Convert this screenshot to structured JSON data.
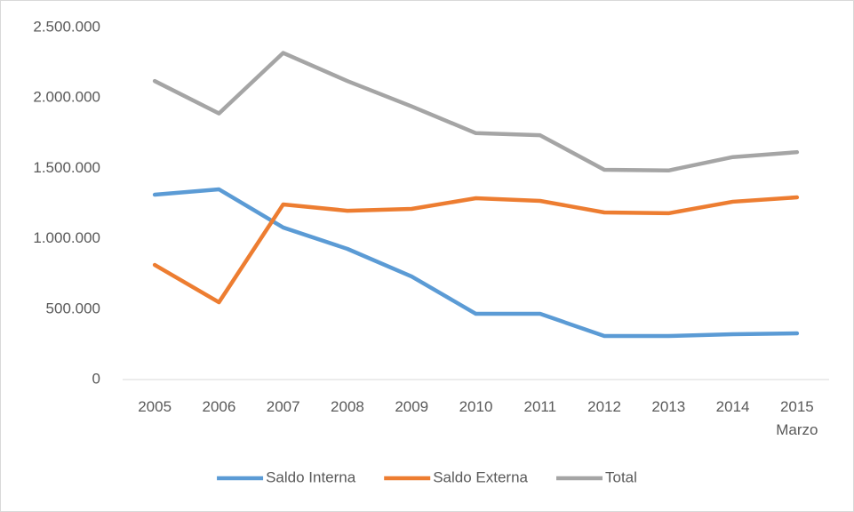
{
  "chart_data": {
    "type": "line",
    "categories": [
      "2005",
      "2006",
      "2007",
      "2008",
      "2009",
      "2010",
      "2011",
      "2012",
      "2013",
      "2014",
      "2015\nMarzo"
    ],
    "series": [
      {
        "name": "Saldo Interna",
        "color": "#5b9bd5",
        "values": [
          1313000,
          1351000,
          1080000,
          928000,
          732000,
          467000,
          467000,
          309000,
          309000,
          322000,
          328000
        ]
      },
      {
        "name": "Saldo Externa",
        "color": "#ed7d31",
        "values": [
          814000,
          549000,
          1244000,
          1199000,
          1212000,
          1288000,
          1269000,
          1187000,
          1181000,
          1263000,
          1294000
        ]
      },
      {
        "name": "Total",
        "color": "#a5a5a5",
        "values": [
          2120000,
          1890000,
          2320000,
          2120000,
          1940000,
          1750000,
          1735000,
          1490000,
          1485000,
          1580000,
          1615000
        ]
      }
    ],
    "ylim": [
      0,
      2500000
    ],
    "yticks": [
      0,
      {
        "value": 500000,
        "label": "500.000"
      },
      {
        "value": 1000000,
        "label": "1.000.000"
      },
      {
        "value": 1500000,
        "label": "1.500.000"
      },
      {
        "value": 2000000,
        "label": "2.000.000"
      },
      {
        "value": 2500000,
        "label": "2.500.000"
      }
    ],
    "grid": false,
    "legend": "bottom"
  }
}
